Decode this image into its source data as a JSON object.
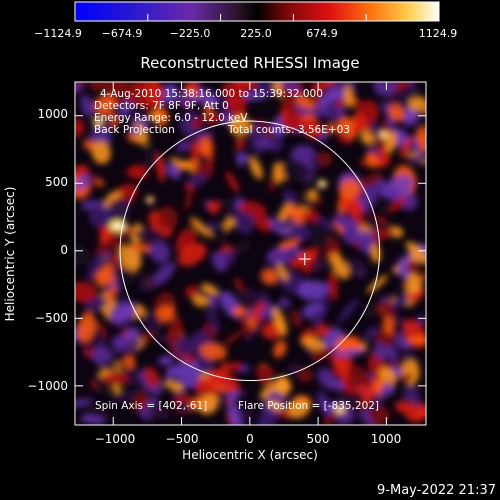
{
  "colorbar": {
    "ticks": [
      "−1124.9",
      "−674.9",
      "−225.0",
      "225.0",
      "674.9",
      "1124.9"
    ],
    "tick_values": [
      -1124.9,
      -674.9,
      -225.0,
      225.0,
      674.9,
      1124.9
    ],
    "range": [
      -1124.9,
      1124.9
    ]
  },
  "title": "Reconstructed RHESSI Image",
  "info": {
    "line1": "4-Aug-2010 15:38:16.000 to 15:39:32.000",
    "line2": "Detectors: 7F 8F 9F, Att 0",
    "line3": "Energy Range: 6.0 - 12.0 keV",
    "line4a": "Back Projection",
    "line4b": "Total counts: 3.56E+03",
    "spin_axis": "Spin Axis = [402,-61]",
    "flare_position": "Flare Position = [-835,202]"
  },
  "axes": {
    "xlabel": "Heliocentric X (arcsec)",
    "ylabel": "Heliocentric Y (arcsec)",
    "xticks": [
      "−1000",
      "−500",
      "0",
      "500",
      "1000"
    ],
    "xtick_values": [
      -1000,
      -500,
      0,
      500,
      1000
    ],
    "yticks": [
      "1000",
      "500",
      "0",
      "−500",
      "−1000"
    ],
    "ytick_values": [
      1000,
      500,
      0,
      -500,
      -1000
    ],
    "xlim": [
      -1280,
      1290
    ],
    "ylim": [
      -1290,
      1250
    ]
  },
  "solar_limb": {
    "center": [
      0,
      0
    ],
    "radius_arcsec": 950
  },
  "spin_axis_marker": [
    402,
    -61
  ],
  "timestamp": "9-May-2022 21:37",
  "colors": {
    "background": "#000000",
    "limb": "#ffffff"
  }
}
